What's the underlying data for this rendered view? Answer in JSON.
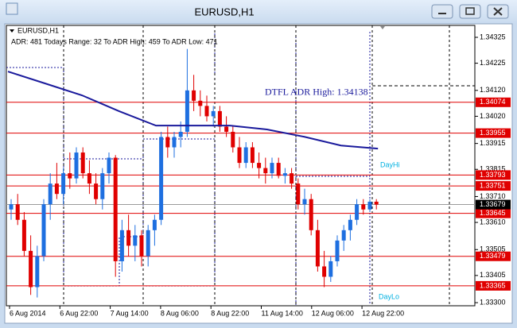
{
  "chart_data": {
    "type": "candlestick",
    "window_title": "EURUSD,H1",
    "symbol_label": "EURUSD,H1",
    "info": "ADR: 481  Todays Range: 32  To ADR High: 459  To ADR Low: 471",
    "adr_high_label": "DTFL ADR High: 1.34138",
    "adr_high": 1.34138,
    "day_hi_label": "DayHi",
    "day_lo_label": "DayLo",
    "ylim": [
      1.33288,
      1.34371
    ],
    "yticks": [
      1.34325,
      1.34225,
      {
        "value": 1.3412,
        "label": "1.34120"
      },
      {
        "value": 1.3402,
        "label": "1.34020"
      },
      1.33915,
      1.33815,
      {
        "value": 1.3371,
        "label": "1.33710"
      },
      {
        "value": 1.3361,
        "label": "1.33610"
      },
      1.33505,
      1.33405,
      {
        "value": 1.333,
        "label": "1.33300"
      }
    ],
    "levels": [
      1.34074,
      1.33955,
      1.33793,
      1.33751,
      1.33645,
      1.33479,
      1.33365
    ],
    "level_color": "#e00000",
    "current_price": 1.33679,
    "xtick_labels": [
      "6 Aug 2014",
      "6 Aug 22:00",
      "7 Aug 14:00",
      "8 Aug 06:00",
      "8 Aug 22:00",
      "11 Aug 14:00",
      "12 Aug 06:00",
      "12 Aug 22:00"
    ],
    "up_color": "#1e6fe0",
    "down_color": "#e00000",
    "ma_color": "#1a1a9c",
    "candles": [
      [
        1.3366,
        1.337,
        1.3362,
        1.3368
      ],
      [
        1.3368,
        1.3372,
        1.336,
        1.3362
      ],
      [
        1.3362,
        1.3365,
        1.3348,
        1.335
      ],
      [
        1.335,
        1.3356,
        1.3333,
        1.3336
      ],
      [
        1.3336,
        1.3352,
        1.3332,
        1.3348
      ],
      [
        1.3348,
        1.337,
        1.3346,
        1.3368
      ],
      [
        1.3368,
        1.338,
        1.3362,
        1.3376
      ],
      [
        1.3376,
        1.3384,
        1.337,
        1.3372
      ],
      [
        1.3372,
        1.3382,
        1.3368,
        1.338
      ],
      [
        1.338,
        1.3388,
        1.3374,
        1.3378
      ],
      [
        1.3378,
        1.339,
        1.3376,
        1.3388
      ],
      [
        1.3388,
        1.339,
        1.3378,
        1.338
      ],
      [
        1.338,
        1.3385,
        1.3372,
        1.3376
      ],
      [
        1.3376,
        1.338,
        1.3368,
        1.337
      ],
      [
        1.337,
        1.3382,
        1.3366,
        1.338
      ],
      [
        1.338,
        1.3388,
        1.3376,
        1.3386
      ],
      [
        1.3386,
        1.3387,
        1.334,
        1.3346
      ],
      [
        1.3346,
        1.3362,
        1.3342,
        1.3358
      ],
      [
        1.3358,
        1.3364,
        1.3348,
        1.3352
      ],
      [
        1.3352,
        1.336,
        1.3346,
        1.3356
      ],
      [
        1.3356,
        1.3358,
        1.3344,
        1.3348
      ],
      [
        1.3348,
        1.336,
        1.3344,
        1.3358
      ],
      [
        1.3358,
        1.3364,
        1.3352,
        1.3362
      ],
      [
        1.3362,
        1.3396,
        1.336,
        1.3394
      ],
      [
        1.3394,
        1.3398,
        1.3386,
        1.339
      ],
      [
        1.339,
        1.3396,
        1.3386,
        1.3394
      ],
      [
        1.3394,
        1.34,
        1.339,
        1.3396
      ],
      [
        1.3396,
        1.3428,
        1.3394,
        1.3412
      ],
      [
        1.3412,
        1.3418,
        1.3404,
        1.3408
      ],
      [
        1.3408,
        1.3412,
        1.3402,
        1.3406
      ],
      [
        1.3406,
        1.341,
        1.34,
        1.3402
      ],
      [
        1.3402,
        1.3406,
        1.3398,
        1.3404
      ],
      [
        1.3404,
        1.3406,
        1.3396,
        1.3398
      ],
      [
        1.3398,
        1.3402,
        1.3394,
        1.3396
      ],
      [
        1.3396,
        1.3398,
        1.3388,
        1.339
      ],
      [
        1.339,
        1.3394,
        1.3382,
        1.3384
      ],
      [
        1.3384,
        1.3392,
        1.3382,
        1.339
      ],
      [
        1.339,
        1.3392,
        1.3382,
        1.3384
      ],
      [
        1.3384,
        1.3388,
        1.3378,
        1.3382
      ],
      [
        1.3382,
        1.3386,
        1.3376,
        1.338
      ],
      [
        1.338,
        1.3386,
        1.3378,
        1.3384
      ],
      [
        1.3384,
        1.3386,
        1.3378,
        1.3379
      ],
      [
        1.3379,
        1.3382,
        1.3376,
        1.338
      ],
      [
        1.338,
        1.3382,
        1.3374,
        1.3376
      ],
      [
        1.3376,
        1.3378,
        1.3366,
        1.3368
      ],
      [
        1.3368,
        1.3374,
        1.3364,
        1.337
      ],
      [
        1.337,
        1.3372,
        1.3356,
        1.3358
      ],
      [
        1.3358,
        1.3362,
        1.3342,
        1.3344
      ],
      [
        1.3344,
        1.335,
        1.3336,
        1.334
      ],
      [
        1.334,
        1.3348,
        1.3338,
        1.3346
      ],
      [
        1.3346,
        1.3356,
        1.3344,
        1.3354
      ],
      [
        1.3354,
        1.336,
        1.335,
        1.3358
      ],
      [
        1.3358,
        1.3364,
        1.3354,
        1.3362
      ],
      [
        1.3362,
        1.337,
        1.336,
        1.3368
      ],
      [
        1.3368,
        1.337,
        1.3364,
        1.3366
      ],
      [
        1.3366,
        1.337,
        1.3365,
        1.3369
      ],
      [
        1.3369,
        1.337,
        1.3366,
        1.33679
      ]
    ],
    "ma": [
      1.34193,
      1.34147,
      1.34101,
      1.3404,
      1.33984,
      1.33984,
      1.33984,
      1.33969,
      1.33941,
      1.33907,
      1.33895
    ]
  }
}
